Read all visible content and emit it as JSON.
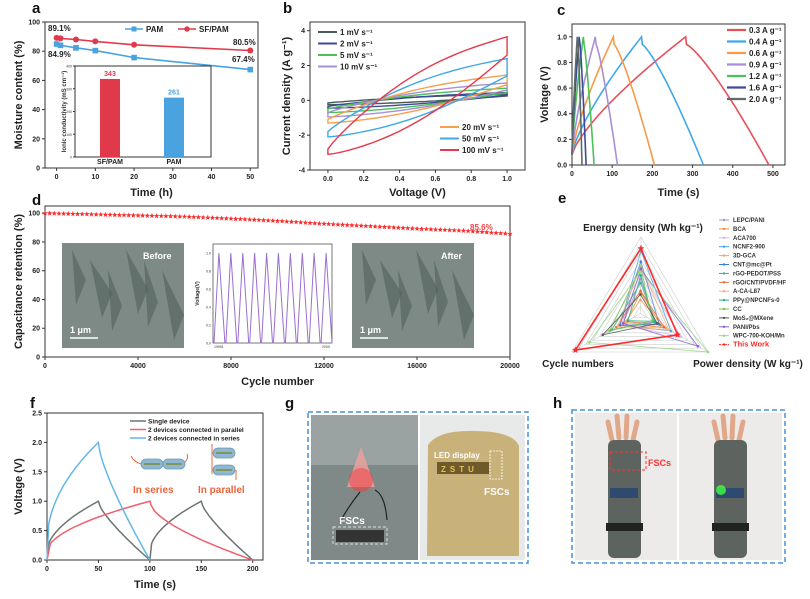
{
  "chart_data": [
    {
      "panel": "a",
      "type": "line",
      "xlabel": "Time (h)",
      "ylabel": "Moisture content (%)",
      "xlim": [
        -3,
        52
      ],
      "ylim": [
        0,
        100
      ],
      "xticks": [
        0,
        10,
        20,
        30,
        40,
        50
      ],
      "yticks": [
        0,
        20,
        40,
        60,
        80,
        100
      ],
      "legend": "top-right",
      "series": [
        {
          "name": "PAM",
          "color": "#4aa3df",
          "marker": "square",
          "x": [
            0,
            1,
            5,
            10,
            20,
            50
          ],
          "y": [
            84.9,
            84.0,
            82.3,
            80.4,
            75.6,
            67.4
          ]
        },
        {
          "name": "SF/PAM",
          "color": "#e03a4a",
          "marker": "circle",
          "x": [
            0,
            1,
            5,
            10,
            20,
            50
          ],
          "y": [
            89.1,
            88.8,
            88.0,
            86.7,
            84.4,
            80.5
          ]
        }
      ],
      "annotations": [
        {
          "text": "89.1%",
          "series": "SF/PAM"
        },
        {
          "text": "80.5%",
          "series": "SF/PAM"
        },
        {
          "text": "84.9%",
          "series": "PAM"
        },
        {
          "text": "67.4%",
          "series": "PAM"
        }
      ],
      "inset": {
        "type": "bar",
        "ylabel": "Ionic conductivity (mS cm⁻¹)",
        "ylim": [
          0,
          400
        ],
        "yticks": [
          0,
          100,
          200,
          300,
          400
        ],
        "categories": [
          "SF/PAM",
          "PAM"
        ],
        "values": [
          343,
          261
        ],
        "colors": [
          "#e03a4a",
          "#4aa3df"
        ],
        "labels": [
          "343",
          "261"
        ]
      }
    },
    {
      "panel": "b",
      "type": "line",
      "xlabel": "Voltage (V)",
      "ylabel": "Current density (A g⁻¹)",
      "xlim": [
        -0.1,
        1.1
      ],
      "ylim": [
        -4,
        4.5
      ],
      "xticks": [
        0.0,
        0.2,
        0.4,
        0.6,
        0.8,
        1.0
      ],
      "yticks": [
        -4,
        -2,
        0,
        2,
        4
      ],
      "series": [
        {
          "name": "1 mV s⁻¹",
          "color": "#4a5a55",
          "top": [
            -0.15,
            0.35
          ],
          "bottom": [
            -0.25,
            0.25
          ]
        },
        {
          "name": "2 mV s⁻¹",
          "color": "#3b4a9a",
          "top": [
            -0.35,
            0.45
          ],
          "bottom": [
            -0.45,
            0.3
          ]
        },
        {
          "name": "5 mV s⁻¹",
          "color": "#4cc15a",
          "top": [
            -0.5,
            0.7
          ],
          "bottom": [
            -0.7,
            0.45
          ]
        },
        {
          "name": "10 mV s⁻¹",
          "color": "#a98fd6",
          "top": [
            -0.7,
            1.0
          ],
          "bottom": [
            -0.95,
            0.6
          ]
        },
        {
          "name": "20 mV s⁻¹",
          "color": "#f5a04a",
          "top": [
            -1.1,
            1.45
          ],
          "bottom": [
            -1.3,
            0.9
          ]
        },
        {
          "name": "50 mV s⁻¹",
          "color": "#3fa9e6",
          "top": [
            -1.8,
            2.4
          ],
          "bottom": [
            -2.1,
            1.4
          ]
        },
        {
          "name": "100 mV s⁻¹",
          "color": "#e6394a",
          "top": [
            -2.8,
            3.65
          ],
          "bottom": [
            -3.1,
            2.6
          ]
        }
      ],
      "legend": [
        "top-left",
        "bottom-right"
      ]
    },
    {
      "panel": "c",
      "type": "line",
      "xlabel": "Time (s)",
      "ylabel": "Voltage (V)",
      "xlim": [
        0,
        530
      ],
      "ylim": [
        0,
        1.1
      ],
      "xticks": [
        0,
        100,
        200,
        300,
        400,
        500
      ],
      "yticks": [
        0.0,
        0.2,
        0.4,
        0.6,
        0.8,
        1.0
      ],
      "legend": "top-right",
      "series": [
        {
          "name": "0.3 A g⁻¹",
          "color": "#e6505a",
          "peak_t": 283,
          "end_t": 490
        },
        {
          "name": "0.4 A g⁻¹",
          "color": "#3fa9e6",
          "peak_t": 173,
          "end_t": 327
        },
        {
          "name": "0.6 A g⁻¹",
          "color": "#f79a4a",
          "peak_t": 103,
          "end_t": 205
        },
        {
          "name": "0.9 A g⁻¹",
          "color": "#a98fd6",
          "peak_t": 58,
          "end_t": 113
        },
        {
          "name": "1.2 A g⁻¹",
          "color": "#4cc15a",
          "peak_t": 28,
          "end_t": 55
        },
        {
          "name": "1.6 A g⁻¹",
          "color": "#3b4a9a",
          "peak_t": 18,
          "end_t": 35
        },
        {
          "name": "2.0 A g⁻¹",
          "color": "#5f6b68",
          "peak_t": 13,
          "end_t": 25
        }
      ]
    },
    {
      "panel": "d",
      "type": "scatter",
      "xlabel": "Cycle number",
      "ylabel": "Capacitance retention (%)",
      "xlim": [
        0,
        20000
      ],
      "ylim": [
        0,
        105
      ],
      "xticks": [
        0,
        4000,
        8000,
        12000,
        16000,
        20000
      ],
      "yticks": [
        0,
        20,
        40,
        60,
        80,
        100
      ],
      "series": [
        {
          "name": "retention",
          "color": "#ff2a2a",
          "marker": "star",
          "x": [
            0,
            2000,
            4000,
            6000,
            8000,
            10000,
            12000,
            14000,
            16000,
            18000,
            20000
          ],
          "y": [
            100,
            99.2,
            98.4,
            97.6,
            96.2,
            94.6,
            92.6,
            90.9,
            89.2,
            87.8,
            85.6
          ]
        }
      ],
      "annotations": [
        {
          "text": "85.6%"
        }
      ],
      "insets": [
        {
          "type": "image",
          "label": "Before",
          "scale_bar": "1 μm"
        },
        {
          "type": "line",
          "ylabel": "Voltage(V)",
          "xticks": [
            "19991",
            "2000"
          ],
          "yticks": [
            "0.0",
            "0.2",
            "0.4",
            "0.6",
            "0.8",
            "1.0"
          ],
          "cycles": 10,
          "color": "#9b6fd0"
        },
        {
          "type": "image",
          "label": "After",
          "scale_bar": "1 μm"
        }
      ]
    },
    {
      "panel": "e",
      "type": "radar",
      "axes": [
        "Energy density (Wh kg⁻¹)",
        "Power density (W kg⁻¹)",
        "Cycle numbers"
      ],
      "series": [
        {
          "name": "LEPC/PANI",
          "color": "#a98fd6",
          "values": [
            0.45,
            0.22,
            0.25
          ]
        },
        {
          "name": "BCA",
          "color": "#f28a3c",
          "values": [
            0.28,
            0.3,
            0.2
          ]
        },
        {
          "name": "ACA700",
          "color": "#d9b4e8",
          "values": [
            0.55,
            0.6,
            0.28
          ]
        },
        {
          "name": "NCNF2-900",
          "color": "#4aa3df",
          "values": [
            0.82,
            0.45,
            0.3
          ]
        },
        {
          "name": "3D-GCA",
          "color": "#f7a455",
          "values": [
            0.18,
            0.38,
            0.22
          ]
        },
        {
          "name": "CNT@mc@Pt",
          "color": "#3f7fd0",
          "values": [
            0.68,
            0.28,
            0.3
          ]
        },
        {
          "name": "rGO-PEDOT/PSS",
          "color": "#3fae8a",
          "values": [
            0.4,
            0.22,
            0.42
          ]
        },
        {
          "name": "rGO/CNT/PVDF/HF",
          "color": "#e66a3a",
          "values": [
            0.3,
            0.35,
            0.35
          ]
        },
        {
          "name": "A-CA-L87",
          "color": "#f7b07a",
          "values": [
            0.62,
            0.42,
            0.33
          ]
        },
        {
          "name": "PPy@NPCNFs-0",
          "color": "#2ab08e",
          "values": [
            0.5,
            0.2,
            0.18
          ]
        },
        {
          "name": "CC",
          "color": "#74c64a",
          "values": [
            0.6,
            0.18,
            0.45
          ]
        },
        {
          "name": "MoS₂@MXene",
          "color": "#555555",
          "values": [
            0.25,
            0.25,
            0.55
          ]
        },
        {
          "name": "PANI/Pbs",
          "color": "#8a60d0",
          "values": [
            0.58,
            0.85,
            0.25
          ]
        },
        {
          "name": "WPC-700-KOH/Mn",
          "color": "#9bd48a",
          "values": [
            0.55,
            1.0,
            0.75
          ]
        },
        {
          "name": "This Work",
          "color": "#ff2a2a",
          "values": [
            0.85,
            0.55,
            0.95
          ],
          "highlight": true
        }
      ],
      "legend": "right"
    },
    {
      "panel": "f",
      "type": "line",
      "xlabel": "Time (s)",
      "ylabel": "Voltage (V)",
      "xlim": [
        0,
        210
      ],
      "ylim": [
        0,
        2.5
      ],
      "xticks": [
        0,
        50,
        100,
        150,
        200
      ],
      "yticks": [
        0.0,
        0.5,
        1.0,
        1.5,
        2.0,
        2.5
      ],
      "legend": "top-right",
      "series": [
        {
          "name": "Single device",
          "color": "#6b7573"
        },
        {
          "name": "2 devices connected in parallel",
          "color": "#f0606a"
        },
        {
          "name": "2 devices connected in series",
          "color": "#62b8ea"
        }
      ],
      "annotations": [
        {
          "text": "In series"
        },
        {
          "text": "In parallel"
        }
      ]
    }
  ],
  "panels": {
    "a": "a",
    "b": "b",
    "c": "c",
    "d": "d",
    "e": "e",
    "f": "f",
    "g": "g",
    "h": "h"
  },
  "photos": {
    "g": {
      "left_label": "FSCs",
      "right_led_label": "LED display",
      "right_fsc_label": "FSCs",
      "led_text": "ZSTU"
    },
    "h": {
      "label": "FSCs"
    }
  },
  "d_inset_text": {
    "before": "Before",
    "after": "After",
    "scale": "1 μm"
  }
}
